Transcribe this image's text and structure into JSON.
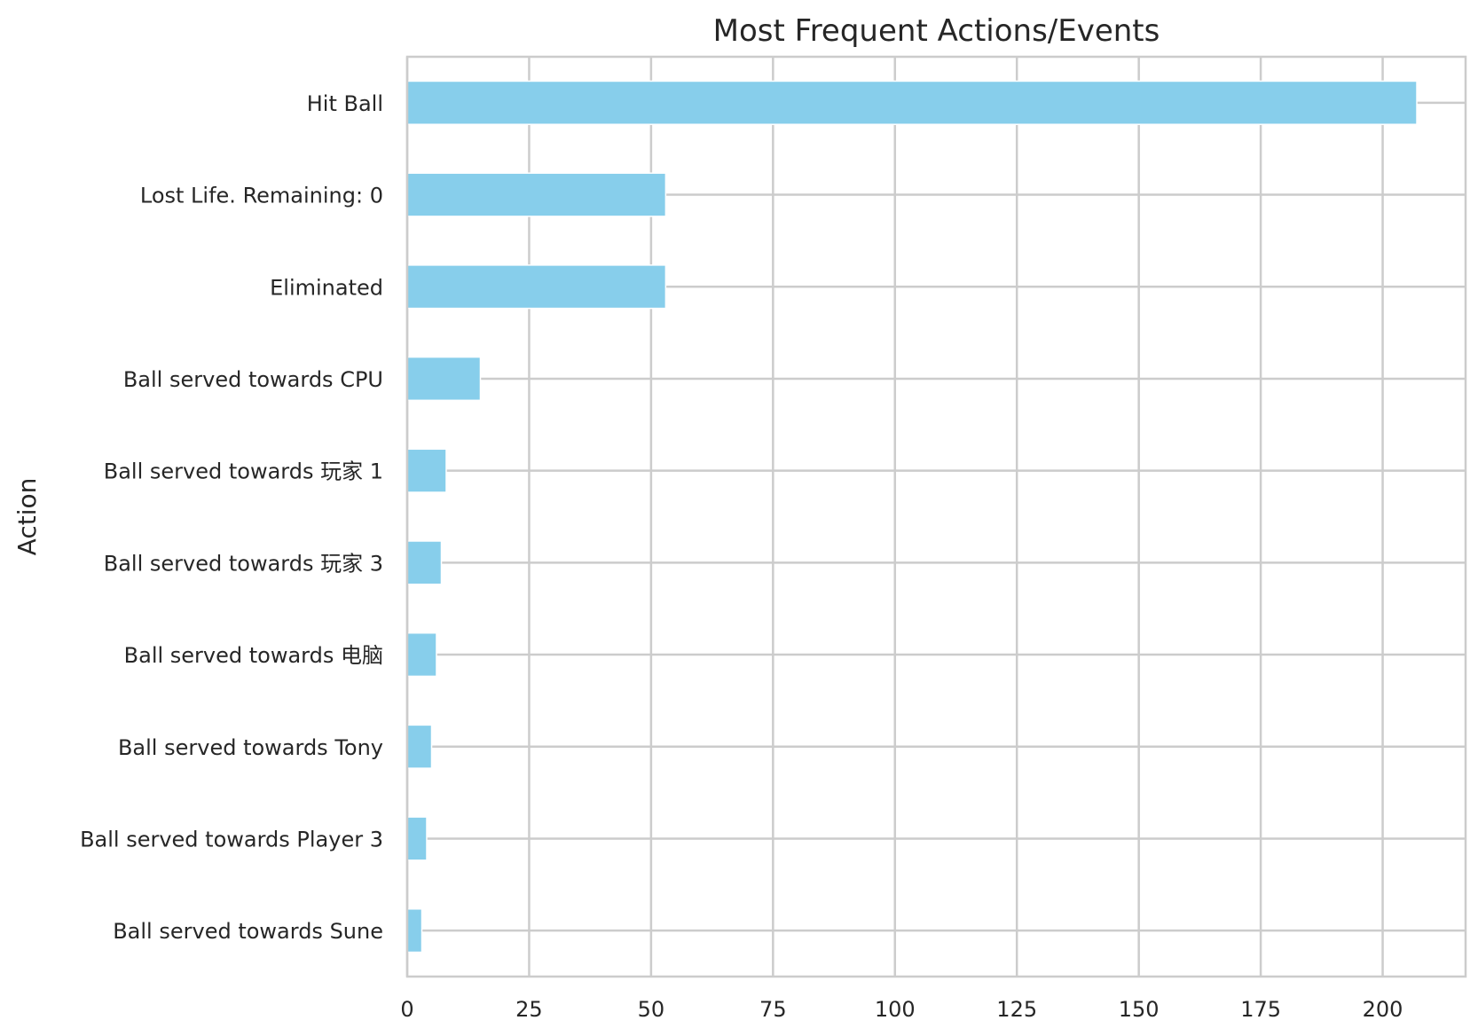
{
  "chart_data": {
    "type": "bar",
    "orientation": "horizontal",
    "title": "Most Frequent Actions/Events",
    "xlabel": "",
    "ylabel": "Action",
    "categories": [
      "Hit Ball",
      "Lost Life. Remaining: 0",
      "Eliminated",
      "Ball served towards CPU",
      "Ball served towards 玩家 1",
      "Ball served towards 玩家 3",
      "Ball served towards 电脑",
      "Ball served towards Tony",
      "Ball served towards Player 3",
      "Ball served towards Sune"
    ],
    "values": [
      207,
      53,
      53,
      15,
      8,
      7,
      6,
      5,
      4,
      3
    ],
    "xlim": [
      0,
      217
    ],
    "xticks": [
      0,
      25,
      50,
      75,
      100,
      125,
      150,
      175,
      200
    ],
    "grid": true,
    "bar_color": "#87ceeb",
    "grid_color": "#cccccc",
    "spine_color": "#cccccc",
    "text_color": "#262626"
  }
}
